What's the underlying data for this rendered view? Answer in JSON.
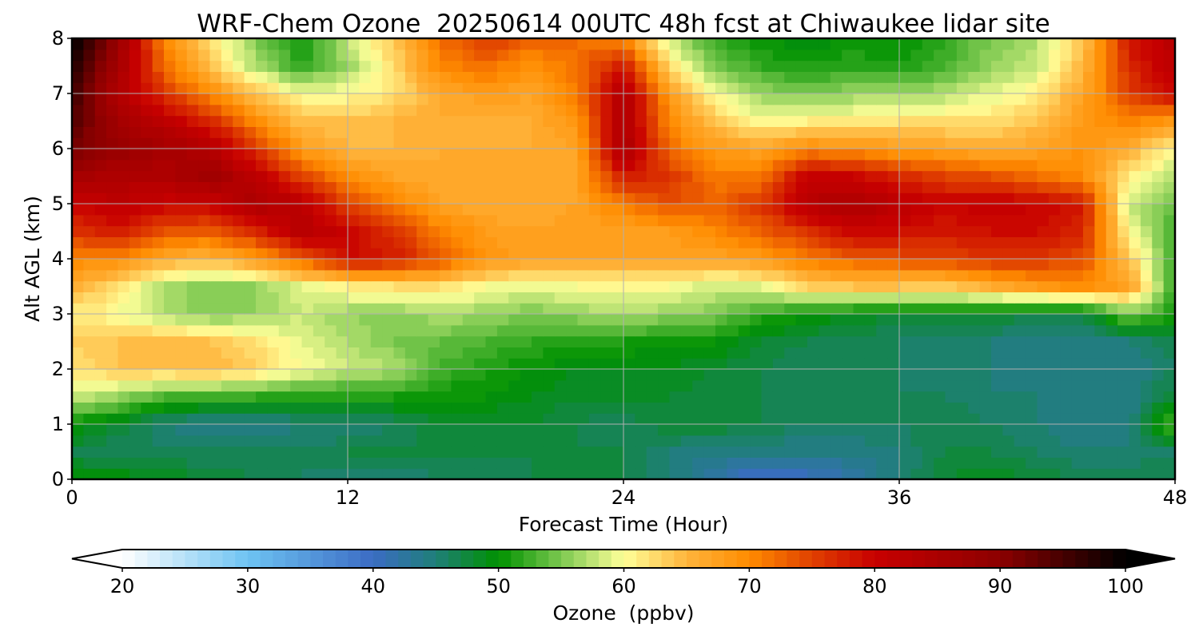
{
  "chart_data": {
    "type": "heatmap",
    "title": "WRF-Chem Ozone  20250614 00UTC 48h fcst at Chiwaukee lidar site",
    "xlabel": "Forecast Time (Hour)",
    "ylabel": "Alt AGL (km)",
    "xlim": [
      0,
      48
    ],
    "ylim": [
      0,
      8
    ],
    "xticks": [
      0,
      12,
      24,
      36,
      48
    ],
    "yticks": [
      0,
      1,
      2,
      3,
      4,
      5,
      6,
      7,
      8
    ],
    "grid": true,
    "colorbar": {
      "label": "Ozone  (ppbv)",
      "min": 20,
      "max": 100,
      "ticks": [
        20,
        30,
        40,
        50,
        60,
        70,
        80,
        90,
        100
      ],
      "extend": "both",
      "color_stops": [
        {
          "value": 20,
          "color": "#ffffff"
        },
        {
          "value": 30,
          "color": "#6ec3f2"
        },
        {
          "value": 40,
          "color": "#3b6cc4"
        },
        {
          "value": 45,
          "color": "#1f7f78"
        },
        {
          "value": 50,
          "color": "#009100"
        },
        {
          "value": 55,
          "color": "#7cc850"
        },
        {
          "value": 60,
          "color": "#ffff99"
        },
        {
          "value": 65,
          "color": "#ffb43c"
        },
        {
          "value": 70,
          "color": "#ff8c00"
        },
        {
          "value": 75,
          "color": "#e04000"
        },
        {
          "value": 80,
          "color": "#c80000"
        },
        {
          "value": 90,
          "color": "#8c0000"
        },
        {
          "value": 100,
          "color": "#000000"
        }
      ]
    },
    "grid_x": [
      0,
      2,
      4,
      6,
      8,
      10,
      12,
      14,
      16,
      18,
      20,
      22,
      24,
      26,
      28,
      30,
      32,
      34,
      36,
      38,
      40,
      42,
      44,
      46,
      48
    ],
    "grid_y": [
      0,
      0.5,
      1,
      1.5,
      2,
      2.5,
      3,
      3.5,
      4,
      4.5,
      5,
      5.5,
      6,
      6.5,
      7,
      7.5,
      8
    ],
    "z": [
      [
        50,
        50,
        49,
        48,
        47,
        46,
        45,
        45,
        46,
        46,
        47,
        48,
        47,
        45,
        42,
        39,
        40,
        42,
        45,
        48,
        49,
        48,
        47,
        47,
        47
      ],
      [
        47,
        46,
        46,
        46,
        46,
        46,
        47,
        47,
        47,
        47,
        47,
        47,
        47,
        45,
        44,
        44,
        44,
        44,
        45,
        47,
        47,
        46,
        45,
        45,
        46
      ],
      [
        50,
        48,
        45,
        44,
        44,
        45,
        45,
        46,
        48,
        48,
        48,
        47,
        46,
        48,
        48,
        47,
        46,
        46,
        46,
        47,
        46,
        45,
        44,
        44,
        54
      ],
      [
        58,
        56,
        53,
        52,
        52,
        51,
        51,
        51,
        50,
        50,
        49,
        48,
        48,
        48,
        47,
        47,
        46,
        46,
        46,
        46,
        45,
        45,
        44,
        44,
        48
      ],
      [
        62,
        64,
        64,
        65,
        63,
        60,
        58,
        57,
        53,
        51,
        50,
        49,
        49,
        49,
        48,
        47,
        46,
        46,
        46,
        45,
        45,
        44,
        44,
        44,
        46
      ],
      [
        63,
        64,
        65,
        64,
        62,
        59,
        57,
        55,
        54,
        53,
        52,
        51,
        51,
        50,
        50,
        48,
        47,
        46,
        46,
        45,
        45,
        44,
        44,
        45,
        47
      ],
      [
        61,
        60,
        57,
        55,
        56,
        58,
        56,
        55,
        57,
        56,
        55,
        56,
        57,
        56,
        55,
        52,
        50,
        49,
        48,
        48,
        48,
        47,
        47,
        55,
        51
      ],
      [
        66,
        62,
        57,
        55,
        56,
        59,
        61,
        62,
        62,
        60,
        59,
        60,
        60,
        60,
        58,
        59,
        63,
        64,
        64,
        63,
        66,
        68,
        70,
        67,
        51
      ],
      [
        70,
        70,
        66,
        65,
        68,
        73,
        79,
        78,
        74,
        69,
        67,
        67,
        67,
        67,
        67,
        68,
        71,
        73,
        74,
        75,
        76,
        76,
        74,
        64,
        52
      ],
      [
        76,
        78,
        74,
        73,
        77,
        83,
        80,
        76,
        71,
        68,
        67,
        68,
        67,
        68,
        70,
        73,
        76,
        80,
        79,
        78,
        79,
        79,
        77,
        60,
        52
      ],
      [
        80,
        82,
        80,
        80,
        85,
        82,
        75,
        71,
        67,
        66,
        66,
        67,
        71,
        74,
        73,
        76,
        83,
        85,
        82,
        80,
        81,
        80,
        78,
        58,
        54
      ],
      [
        86,
        84,
        84,
        87,
        82,
        75,
        70,
        67,
        66,
        66,
        66,
        67,
        78,
        76,
        71,
        71,
        81,
        80,
        77,
        75,
        74,
        72,
        70,
        61,
        57
      ],
      [
        92,
        88,
        86,
        84,
        76,
        68,
        65,
        65,
        66,
        66,
        66,
        67,
        85,
        72,
        68,
        67,
        70,
        69,
        68,
        67,
        66,
        67,
        69,
        66,
        60
      ],
      [
        94,
        86,
        82,
        77,
        70,
        64,
        64,
        65,
        66,
        65,
        66,
        69,
        84,
        70,
        64,
        60,
        61,
        61,
        62,
        62,
        62,
        64,
        68,
        71,
        68
      ],
      [
        96,
        84,
        76,
        70,
        64,
        60,
        60,
        62,
        66,
        68,
        67,
        71,
        84,
        68,
        60,
        56,
        55,
        56,
        56,
        57,
        59,
        61,
        67,
        75,
        80
      ],
      [
        98,
        86,
        72,
        64,
        57,
        52,
        56,
        62,
        70,
        72,
        69,
        72,
        78,
        62,
        55,
        52,
        51,
        52,
        51,
        53,
        56,
        58,
        65,
        77,
        82
      ],
      [
        100,
        88,
        70,
        62,
        55,
        50,
        58,
        64,
        72,
        76,
        73,
        72,
        70,
        58,
        52,
        50,
        49,
        50,
        50,
        52,
        55,
        57,
        64,
        78,
        83
      ]
    ]
  }
}
